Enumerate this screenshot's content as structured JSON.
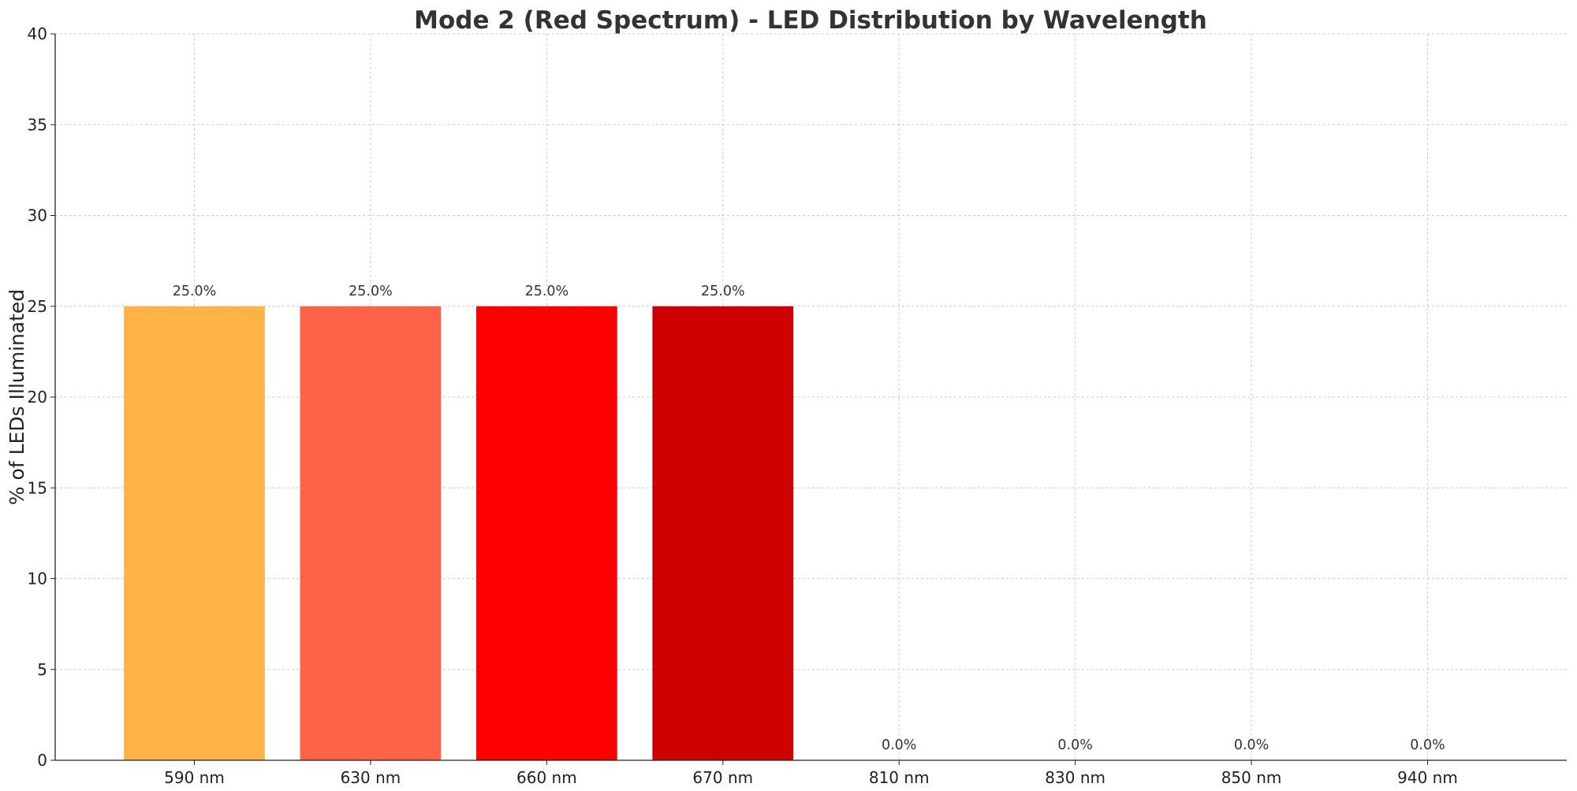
{
  "chart_data": {
    "type": "bar",
    "title": "Mode 2 (Red Spectrum) - LED Distribution by Wavelength",
    "xlabel": "",
    "ylabel": "% of LEDs Illuminated",
    "categories": [
      "590 nm",
      "630 nm",
      "660 nm",
      "670 nm",
      "810 nm",
      "830 nm",
      "850 nm",
      "940 nm"
    ],
    "values": [
      25.0,
      25.0,
      25.0,
      25.0,
      0.0,
      0.0,
      0.0,
      0.0
    ],
    "data_labels": [
      "25.0%",
      "25.0%",
      "25.0%",
      "25.0%",
      "0.0%",
      "0.0%",
      "0.0%",
      "0.0%"
    ],
    "colors": [
      "#FFB347",
      "#FF6347",
      "#FF0000",
      "#CC0000",
      "#8B0000",
      "#8B0000",
      "#8B0000",
      "#8B0000"
    ],
    "ylim": [
      0,
      40
    ],
    "yticks": [
      "0",
      "5",
      "10",
      "15",
      "20",
      "25",
      "30",
      "35",
      "40"
    ],
    "grid": true,
    "legend": "none"
  }
}
